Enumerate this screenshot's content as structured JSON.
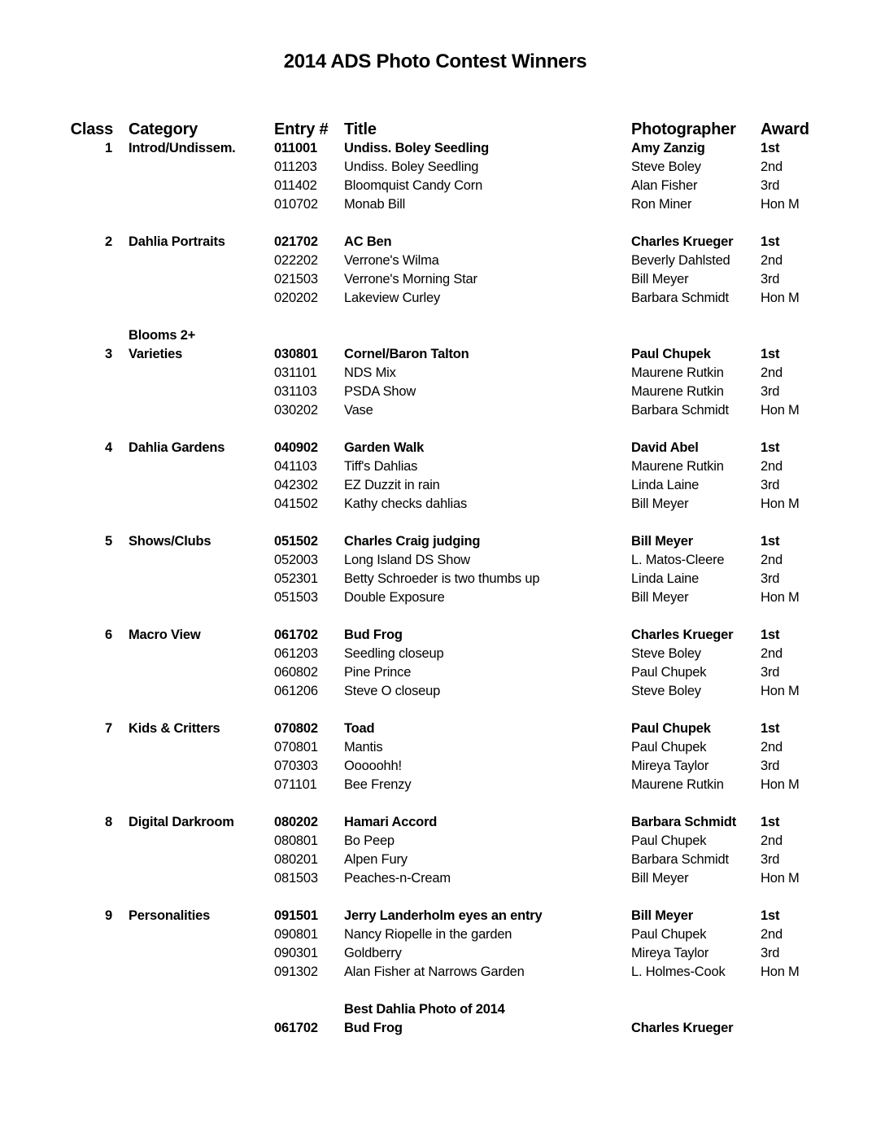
{
  "title": "2014 ADS Photo Contest Winners",
  "headers": {
    "class": "Class",
    "category": "Category",
    "entry": "Entry #",
    "title": "Title",
    "photographer": "Photographer",
    "award": "Award"
  },
  "groups": [
    {
      "class": "1",
      "category": [
        "Introd/Undissem."
      ],
      "entries": [
        {
          "entry": "011001",
          "title": "Undiss. Boley Seedling",
          "photographer": "Amy Zanzig",
          "award": "1st"
        },
        {
          "entry": "011203",
          "title": "Undiss. Boley Seedling",
          "photographer": "Steve Boley",
          "award": "2nd"
        },
        {
          "entry": "011402",
          "title": "Bloomquist Candy Corn",
          "photographer": "Alan Fisher",
          "award": "3rd"
        },
        {
          "entry": "010702",
          "title": "Monab Bill",
          "photographer": "Ron Miner",
          "award": "Hon M"
        }
      ]
    },
    {
      "class": "2",
      "category": [
        "Dahlia Portraits"
      ],
      "entries": [
        {
          "entry": "021702",
          "title": "AC Ben",
          "photographer": "Charles Krueger",
          "award": "1st"
        },
        {
          "entry": "022202",
          "title": "Verrone's Wilma",
          "photographer": "Beverly Dahlsted",
          "award": "2nd"
        },
        {
          "entry": "021503",
          "title": "Verrone's Morning Star",
          "photographer": "Bill Meyer",
          "award": "3rd"
        },
        {
          "entry": "020202",
          "title": "Lakeview Curley",
          "photographer": "Barbara Schmidt",
          "award": "Hon M"
        }
      ]
    },
    {
      "class": "3",
      "category": [
        "Blooms 2+",
        "Varieties"
      ],
      "entries": [
        {
          "entry": "030801",
          "title": "Cornel/Baron Talton",
          "photographer": "Paul Chupek",
          "award": "1st"
        },
        {
          "entry": "031101",
          "title": "NDS Mix",
          "photographer": "Maurene Rutkin",
          "award": "2nd"
        },
        {
          "entry": "031103",
          "title": "PSDA Show",
          "photographer": "Maurene Rutkin",
          "award": "3rd"
        },
        {
          "entry": "030202",
          "title": "Vase",
          "photographer": "Barbara Schmidt",
          "award": "Hon M"
        }
      ]
    },
    {
      "class": "4",
      "category": [
        "Dahlia Gardens"
      ],
      "entries": [
        {
          "entry": "040902",
          "title": "Garden Walk",
          "photographer": "David Abel",
          "award": "1st"
        },
        {
          "entry": "041103",
          "title": "Tiff's Dahlias",
          "photographer": "Maurene Rutkin",
          "award": "2nd"
        },
        {
          "entry": "042302",
          "title": "EZ Duzzit in rain",
          "photographer": "Linda Laine",
          "award": "3rd"
        },
        {
          "entry": "041502",
          "title": "Kathy checks dahlias",
          "photographer": "Bill Meyer",
          "award": "Hon M"
        }
      ]
    },
    {
      "class": "5",
      "category": [
        "Shows/Clubs"
      ],
      "entries": [
        {
          "entry": "051502",
          "title": "Charles Craig judging",
          "photographer": "Bill Meyer",
          "award": "1st"
        },
        {
          "entry": "052003",
          "title": "Long Island DS Show",
          "photographer": "L. Matos-Cleere",
          "award": "2nd"
        },
        {
          "entry": "052301",
          "title": "Betty Schroeder is two thumbs up",
          "photographer": "Linda Laine",
          "award": "3rd"
        },
        {
          "entry": "051503",
          "title": "Double Exposure",
          "photographer": "Bill Meyer",
          "award": "Hon M"
        }
      ]
    },
    {
      "class": "6",
      "category": [
        "Macro View"
      ],
      "entries": [
        {
          "entry": "061702",
          "title": "Bud Frog",
          "photographer": "Charles Krueger",
          "award": "1st"
        },
        {
          "entry": "061203",
          "title": "Seedling closeup",
          "photographer": "Steve Boley",
          "award": "2nd"
        },
        {
          "entry": "060802",
          "title": "Pine Prince",
          "photographer": "Paul Chupek",
          "award": "3rd"
        },
        {
          "entry": "061206",
          "title": "Steve O closeup",
          "photographer": "Steve Boley",
          "award": "Hon M"
        }
      ]
    },
    {
      "class": "7",
      "category": [
        "Kids & Critters"
      ],
      "entries": [
        {
          "entry": "070802",
          "title": "Toad",
          "photographer": "Paul Chupek",
          "award": "1st"
        },
        {
          "entry": "070801",
          "title": "Mantis",
          "photographer": "Paul Chupek",
          "award": "2nd"
        },
        {
          "entry": "070303",
          "title": "Ooooohh!",
          "photographer": "Mireya Taylor",
          "award": "3rd"
        },
        {
          "entry": "071101",
          "title": "Bee Frenzy",
          "photographer": "Maurene Rutkin",
          "award": "Hon M"
        }
      ]
    },
    {
      "class": "8",
      "category": [
        "Digital Darkroom"
      ],
      "entries": [
        {
          "entry": "080202",
          "title": "Hamari Accord",
          "photographer": "Barbara Schmidt",
          "award": "1st"
        },
        {
          "entry": "080801",
          "title": "Bo Peep",
          "photographer": "Paul Chupek",
          "award": "2nd"
        },
        {
          "entry": "080201",
          "title": "Alpen Fury",
          "photographer": "Barbara Schmidt",
          "award": "3rd"
        },
        {
          "entry": "081503",
          "title": "Peaches-n-Cream",
          "photographer": "Bill Meyer",
          "award": "Hon M"
        }
      ]
    },
    {
      "class": "9",
      "category": [
        "Personalities"
      ],
      "entries": [
        {
          "entry": "091501",
          "title": "Jerry Landerholm eyes an entry",
          "photographer": "Bill Meyer",
          "award": "1st"
        },
        {
          "entry": "090801",
          "title": "Nancy Riopelle in the garden",
          "photographer": "Paul Chupek",
          "award": "2nd"
        },
        {
          "entry": "090301",
          "title": "Goldberry",
          "photographer": "Mireya Taylor",
          "award": "3rd"
        },
        {
          "entry": "091302",
          "title": "Alan Fisher at Narrows Garden",
          "photographer": "L. Holmes-Cook",
          "award": "Hon M"
        }
      ]
    }
  ],
  "best": {
    "label": "Best Dahlia Photo of 2014",
    "entry": "061702",
    "title": "Bud Frog",
    "photographer": "Charles Krueger"
  }
}
